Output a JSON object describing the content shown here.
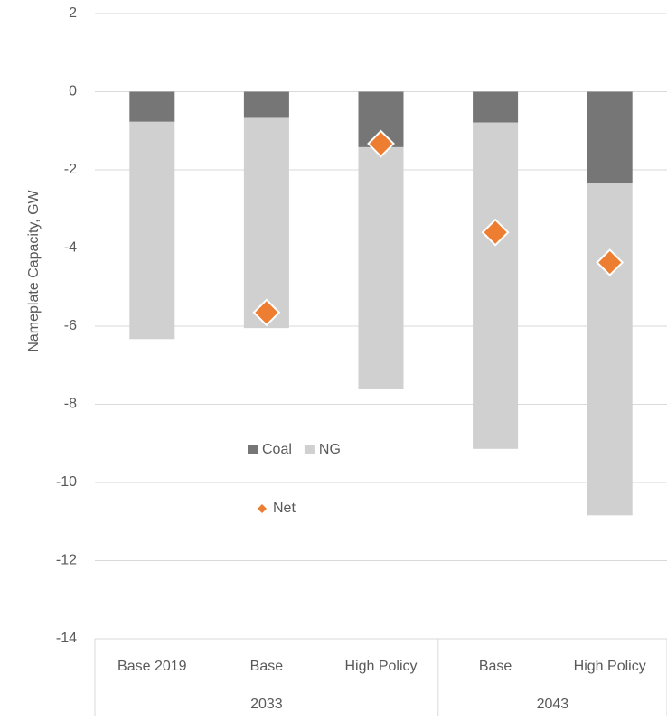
{
  "chart_data": {
    "type": "stacked_bar",
    "y_label": "Nameplate Capacity, GW",
    "categories": [
      "Base 2019",
      "Base",
      "High Policy",
      "Base",
      "High Policy"
    ],
    "category_groups": [
      "2033",
      "2033",
      "2033",
      "2043",
      "2043"
    ],
    "series": [
      {
        "name": "Coal",
        "color": "#767676",
        "values": [
          -0.77,
          -0.67,
          -1.42,
          -0.79,
          -2.33
        ]
      },
      {
        "name": "NG",
        "color": "#d0d0d0",
        "values": [
          -5.56,
          -5.38,
          -6.18,
          -8.35,
          -8.51
        ]
      },
      {
        "name": "Net",
        "color": "#ed7d31",
        "type": "scatter",
        "marker": "diamond",
        "values": [
          null,
          -5.65,
          -1.33,
          -3.6,
          -4.37
        ]
      }
    ],
    "ylim": [
      -14,
      2
    ],
    "yticks": [
      -14,
      -12,
      -10,
      -8,
      -6,
      -4,
      -2,
      0,
      2
    ],
    "grid": true
  }
}
